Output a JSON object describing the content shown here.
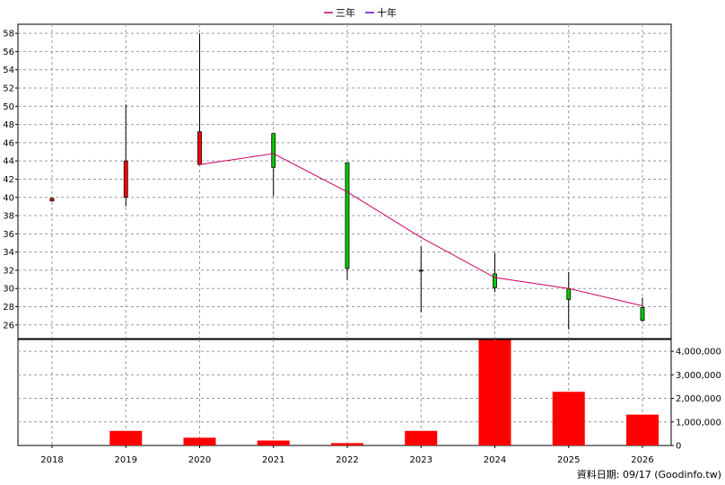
{
  "chart_data": [
    {
      "type": "candlestick",
      "legend": [
        {
          "name": "三年",
          "color": "#cc0066"
        },
        {
          "name": "十年",
          "color": "#6600cc"
        }
      ],
      "x": [
        "2018",
        "2019",
        "2020",
        "2021",
        "2022",
        "2023",
        "2024",
        "2025",
        "2026"
      ],
      "ohlc": [
        {
          "x": "2018",
          "open": 39.6,
          "high": 39.9,
          "low": 39.6,
          "close": 39.9
        },
        {
          "x": "2019",
          "open": 40.0,
          "high": 50.2,
          "low": 39.0,
          "close": 44.0
        },
        {
          "x": "2020",
          "open": 43.6,
          "high": 58.0,
          "low": 43.6,
          "close": 47.2
        },
        {
          "x": "2021",
          "open": 47.0,
          "high": 47.0,
          "low": 40.1,
          "close": 43.3
        },
        {
          "x": "2022",
          "open": 43.8,
          "high": 43.8,
          "low": 30.9,
          "close": 32.2
        },
        {
          "x": "2023",
          "open": 32.0,
          "high": 34.6,
          "low": 27.4,
          "close": 32.0
        },
        {
          "x": "2024",
          "open": 31.6,
          "high": 33.9,
          "low": 29.6,
          "close": 30.1
        },
        {
          "x": "2025",
          "open": 30.0,
          "high": 31.8,
          "low": 25.5,
          "close": 28.8
        },
        {
          "x": "2026",
          "open": 27.9,
          "high": 29.0,
          "low": 26.4,
          "close": 26.5
        }
      ],
      "up_color": "#ff0000",
      "down_color": "#00cc00",
      "three_year_line": [
        {
          "x": "2020",
          "y": 43.6
        },
        {
          "x": "2021",
          "y": 44.8
        },
        {
          "x": "2022",
          "y": 40.6
        },
        {
          "x": "2023",
          "y": 35.6
        },
        {
          "x": "2024",
          "y": 31.2
        },
        {
          "x": "2025",
          "y": 30.0
        },
        {
          "x": "2026",
          "y": 28.1
        }
      ],
      "yticks": [
        "58",
        "56",
        "54",
        "52",
        "50",
        "48",
        "46",
        "44",
        "42",
        "40",
        "38",
        "36",
        "34",
        "32",
        "30",
        "28",
        "26"
      ],
      "ylim": [
        24.5,
        59
      ],
      "grid": true
    },
    {
      "type": "bar",
      "categories": [
        "2018",
        "2019",
        "2020",
        "2021",
        "2022",
        "2023",
        "2024",
        "2025",
        "2026"
      ],
      "values": [
        0,
        620000,
        330000,
        210000,
        100000,
        620000,
        4480000,
        2280000,
        1310000
      ],
      "color": "#ff0000",
      "yticks": [
        "4,000,000",
        "3,000,000",
        "2,000,000",
        "1,000,000",
        "0"
      ],
      "ylim": [
        0,
        4500000
      ],
      "grid": true
    }
  ],
  "credit": "資料日期: 09/17  (Goodinfo.tw)"
}
